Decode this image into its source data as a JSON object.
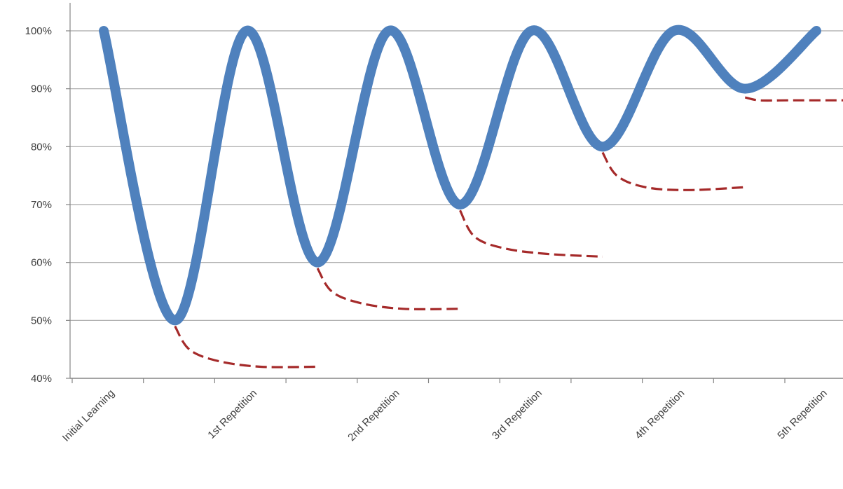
{
  "chart_data": {
    "type": "line",
    "title": "",
    "xlabel": "",
    "ylabel": "",
    "ylim": [
      0.4,
      1.0
    ],
    "y_ticks": [
      "40%",
      "50%",
      "60%",
      "70%",
      "80%",
      "90%",
      "100%"
    ],
    "y_tick_values": [
      0.4,
      0.5,
      0.6,
      0.7,
      0.8,
      0.9,
      1.0
    ],
    "x_ticks": [
      "Initial Learning",
      "1st Repetition",
      "2nd Repetition",
      "3rd Repetition",
      "4th Repetition",
      "5th Repetition"
    ],
    "grid": true,
    "legend": "none",
    "colors": {
      "retention": "#4f81bd",
      "forgetting": "#a52a2a",
      "grid": "#a6a6a6",
      "axis": "#868686",
      "text": "#404040"
    },
    "series": [
      {
        "style": "solid",
        "x": [
          0,
          0.5,
          1,
          1.5,
          2,
          2.5,
          3,
          3.5,
          4,
          4.5,
          5
        ],
        "values": [
          1.0,
          0.5,
          1.0,
          0.6,
          1.0,
          0.7,
          1.0,
          0.8,
          1.0,
          0.9,
          1.0
        ]
      },
      {
        "style": "dashed",
        "x": [
          0.5,
          0.6,
          0.8,
          1.1,
          1.5
        ],
        "values": [
          0.49,
          0.45,
          0.43,
          0.42,
          0.42
        ]
      },
      {
        "style": "dashed",
        "x": [
          1.5,
          1.6,
          1.8,
          2.1,
          2.5
        ],
        "values": [
          0.59,
          0.55,
          0.53,
          0.52,
          0.52
        ]
      },
      {
        "style": "dashed",
        "x": [
          2.5,
          2.6,
          2.8,
          3.1,
          3.5
        ],
        "values": [
          0.69,
          0.645,
          0.625,
          0.615,
          0.61
        ]
      },
      {
        "style": "dashed",
        "x": [
          3.5,
          3.6,
          3.8,
          4.1,
          4.5
        ],
        "values": [
          0.79,
          0.75,
          0.73,
          0.725,
          0.73
        ]
      },
      {
        "style": "dashed",
        "x": [
          4.5,
          4.6,
          4.8,
          5.1,
          5.4
        ],
        "values": [
          0.885,
          0.88,
          0.88,
          0.88,
          0.88
        ]
      }
    ]
  }
}
